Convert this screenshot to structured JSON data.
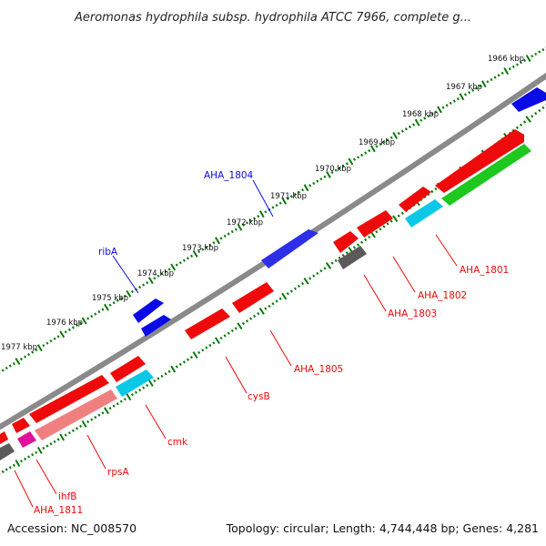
{
  "title": "Aeromonas hydrophila subsp. hydrophila ATCC 7966, complete g...",
  "footer": {
    "accession": "Accession: NC_008570",
    "topology": "Topology: circular; Length: 4,744,448 bp; Genes: 4,281"
  },
  "ticks": [
    "1966 kbp",
    "1967 kbp",
    "1968 kbp",
    "1969 kbp",
    "1970 kbp",
    "1971 kbp",
    "1972 kbp",
    "1973 kbp",
    "1974 kbp",
    "1975 kbp",
    "1976 kbp",
    "1977 kbp"
  ],
  "colors": {
    "forward_cds": "#0a0ae6",
    "reverse_cds": "#ee0a0a",
    "rrna": "#1ec81e",
    "trna": "#0ac8e6",
    "misc": "#5a5a5a",
    "pink": "#f08080",
    "magenta": "#e0109a",
    "backbone": "#8a8a8a",
    "tick": "#0a780a"
  },
  "labels": {
    "aha_1804": "AHA_1804",
    "ribA": "ribA",
    "aha_1801": "AHA_1801",
    "aha_1802": "AHA_1802",
    "aha_1803": "AHA_1803",
    "aha_1805": "AHA_1805",
    "cysB": "cysB",
    "cmk": "cmk",
    "rpsA": "rpsA",
    "ihfB": "ihfB",
    "aha_1811": "AHA_1811"
  }
}
